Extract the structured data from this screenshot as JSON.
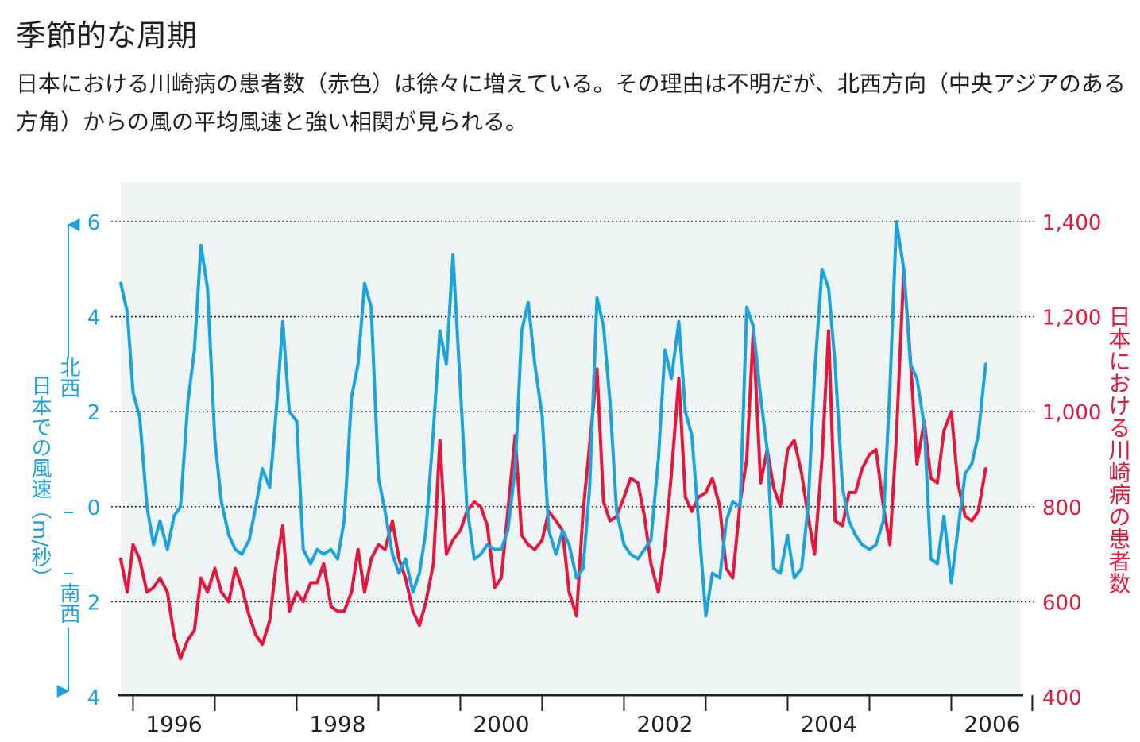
{
  "title": "季節的な周期",
  "subtitle": "日本における川崎病の患者数（赤色）は徐々に増えている。その理由は不明だが、北西方向（中央アジアのある方角）からの風の平均風速と強い相関が見られる。",
  "colors": {
    "wind": "#1ca3dc",
    "cases": "#e4183d",
    "plot_background": "#eef3f4",
    "axis": "#231f20"
  },
  "chart_data": {
    "type": "line",
    "x_range": [
      1995.85,
      2006.85
    ],
    "x_ticks": [
      1996,
      1997,
      1998,
      1999,
      2000,
      2001,
      2002,
      2003,
      2004,
      2005,
      2006,
      2006.99
    ],
    "x_tick_labels": [
      {
        "x": 1996.5,
        "label": "1996"
      },
      {
        "x": 1998.5,
        "label": "1998"
      },
      {
        "x": 2000.5,
        "label": "2000"
      },
      {
        "x": 2002.5,
        "label": "2002"
      },
      {
        "x": 2004.5,
        "label": "2004"
      },
      {
        "x": 2006.5,
        "label": "2006"
      }
    ],
    "left_axis": {
      "label_north": "北西",
      "label_main": "日本での風速（m/秒）",
      "label_south": "南西",
      "range": [
        -4,
        6.7
      ],
      "ticks": [
        6,
        4,
        2,
        0,
        -2,
        -4
      ],
      "tick_labels": [
        "6",
        "4",
        "2",
        "0",
        "2",
        "4"
      ]
    },
    "right_axis": {
      "label": "日本における川崎病の患者数",
      "range": [
        400,
        1470
      ],
      "ticks": [
        1400,
        1200,
        1000,
        800,
        600,
        400
      ],
      "tick_labels": [
        "1,400",
        "1,200",
        "1,000",
        "800",
        "600",
        "400"
      ]
    },
    "gridlines": [
      6,
      4,
      2,
      0,
      -2
    ],
    "series": [
      {
        "axis": "left",
        "points": [
          [
            1995.85,
            4.7
          ],
          [
            1995.93,
            4.1
          ],
          [
            1996.0,
            2.4
          ],
          [
            1996.08,
            1.9
          ],
          [
            1996.17,
            0.0
          ],
          [
            1996.25,
            -0.8
          ],
          [
            1996.33,
            -0.3
          ],
          [
            1996.42,
            -0.9
          ],
          [
            1996.5,
            -0.2
          ],
          [
            1996.58,
            0.0
          ],
          [
            1996.67,
            2.2
          ],
          [
            1996.75,
            3.3
          ],
          [
            1996.83,
            5.5
          ],
          [
            1996.91,
            4.6
          ],
          [
            1997.0,
            1.4
          ],
          [
            1997.08,
            0.1
          ],
          [
            1997.17,
            -0.6
          ],
          [
            1997.25,
            -0.9
          ],
          [
            1997.33,
            -1.0
          ],
          [
            1997.42,
            -0.7
          ],
          [
            1997.5,
            0.0
          ],
          [
            1997.58,
            0.8
          ],
          [
            1997.67,
            0.4
          ],
          [
            1997.75,
            2.0
          ],
          [
            1997.83,
            3.9
          ],
          [
            1997.91,
            2.0
          ],
          [
            1998.0,
            1.8
          ],
          [
            1998.08,
            -0.9
          ],
          [
            1998.17,
            -1.2
          ],
          [
            1998.25,
            -0.9
          ],
          [
            1998.33,
            -1.0
          ],
          [
            1998.42,
            -0.9
          ],
          [
            1998.5,
            -1.1
          ],
          [
            1998.58,
            -0.3
          ],
          [
            1998.67,
            2.3
          ],
          [
            1998.75,
            3.0
          ],
          [
            1998.83,
            4.7
          ],
          [
            1998.91,
            4.2
          ],
          [
            1999.0,
            0.6
          ],
          [
            1999.08,
            -0.1
          ],
          [
            1999.17,
            -1.0
          ],
          [
            1999.25,
            -1.4
          ],
          [
            1999.33,
            -1.1
          ],
          [
            1999.42,
            -1.8
          ],
          [
            1999.5,
            -1.4
          ],
          [
            1999.58,
            -0.5
          ],
          [
            1999.67,
            1.6
          ],
          [
            1999.75,
            3.7
          ],
          [
            1999.83,
            3.0
          ],
          [
            1999.91,
            5.3
          ],
          [
            2000.0,
            2.5
          ],
          [
            2000.08,
            0.0
          ],
          [
            2000.17,
            -1.1
          ],
          [
            2000.25,
            -1.0
          ],
          [
            2000.33,
            -0.8
          ],
          [
            2000.42,
            -0.9
          ],
          [
            2000.5,
            -0.9
          ],
          [
            2000.58,
            -0.5
          ],
          [
            2000.67,
            0.8
          ],
          [
            2000.75,
            3.7
          ],
          [
            2000.83,
            4.3
          ],
          [
            2000.91,
            3.0
          ],
          [
            2001.0,
            1.9
          ],
          [
            2001.08,
            -0.5
          ],
          [
            2001.17,
            -1.0
          ],
          [
            2001.25,
            -0.5
          ],
          [
            2001.33,
            -0.8
          ],
          [
            2001.42,
            -1.5
          ],
          [
            2001.5,
            -1.3
          ],
          [
            2001.58,
            0.4
          ],
          [
            2001.67,
            4.4
          ],
          [
            2001.75,
            3.8
          ],
          [
            2001.83,
            2.2
          ],
          [
            2001.91,
            -0.1
          ],
          [
            2002.0,
            -0.8
          ],
          [
            2002.08,
            -1.0
          ],
          [
            2002.17,
            -1.1
          ],
          [
            2002.25,
            -0.9
          ],
          [
            2002.33,
            -0.7
          ],
          [
            2002.42,
            1.0
          ],
          [
            2002.5,
            3.3
          ],
          [
            2002.58,
            2.7
          ],
          [
            2002.67,
            3.9
          ],
          [
            2002.75,
            2.0
          ],
          [
            2002.83,
            1.5
          ],
          [
            2002.91,
            -0.3
          ],
          [
            2003.0,
            -2.3
          ],
          [
            2003.08,
            -1.4
          ],
          [
            2003.17,
            -1.5
          ],
          [
            2003.25,
            -0.3
          ],
          [
            2003.33,
            0.1
          ],
          [
            2003.42,
            0.0
          ],
          [
            2003.5,
            4.2
          ],
          [
            2003.58,
            3.8
          ],
          [
            2003.67,
            2.3
          ],
          [
            2003.75,
            1.2
          ],
          [
            2003.83,
            -1.3
          ],
          [
            2003.91,
            -1.4
          ],
          [
            2004.0,
            -0.6
          ],
          [
            2004.08,
            -1.5
          ],
          [
            2004.17,
            -1.3
          ],
          [
            2004.25,
            0.0
          ],
          [
            2004.33,
            2.8
          ],
          [
            2004.42,
            5.0
          ],
          [
            2004.5,
            4.6
          ],
          [
            2004.58,
            3.0
          ],
          [
            2004.67,
            0.4
          ],
          [
            2004.75,
            -0.3
          ],
          [
            2004.83,
            -0.6
          ],
          [
            2004.91,
            -0.8
          ],
          [
            2005.0,
            -0.9
          ],
          [
            2005.08,
            -0.8
          ],
          [
            2005.17,
            -0.3
          ],
          [
            2005.25,
            2.5
          ],
          [
            2005.33,
            6.0
          ],
          [
            2005.42,
            5.0
          ],
          [
            2005.5,
            3.0
          ],
          [
            2005.58,
            2.7
          ],
          [
            2005.67,
            1.7
          ],
          [
            2005.75,
            -1.1
          ],
          [
            2005.83,
            -1.2
          ],
          [
            2005.91,
            -0.2
          ],
          [
            2006.0,
            -1.6
          ],
          [
            2006.08,
            -0.5
          ],
          [
            2006.17,
            0.7
          ],
          [
            2006.25,
            0.9
          ],
          [
            2006.33,
            1.5
          ],
          [
            2006.42,
            3.0
          ]
        ]
      },
      {
        "axis": "right",
        "points": [
          [
            1995.85,
            690
          ],
          [
            1995.93,
            620
          ],
          [
            1996.0,
            720
          ],
          [
            1996.08,
            690
          ],
          [
            1996.17,
            620
          ],
          [
            1996.25,
            630
          ],
          [
            1996.33,
            650
          ],
          [
            1996.42,
            620
          ],
          [
            1996.5,
            530
          ],
          [
            1996.58,
            480
          ],
          [
            1996.67,
            520
          ],
          [
            1996.75,
            540
          ],
          [
            1996.83,
            650
          ],
          [
            1996.91,
            620
          ],
          [
            1997.0,
            670
          ],
          [
            1997.08,
            620
          ],
          [
            1997.17,
            600
          ],
          [
            1997.25,
            670
          ],
          [
            1997.33,
            630
          ],
          [
            1997.42,
            570
          ],
          [
            1997.5,
            530
          ],
          [
            1997.58,
            510
          ],
          [
            1997.67,
            560
          ],
          [
            1997.75,
            680
          ],
          [
            1997.83,
            760
          ],
          [
            1997.91,
            580
          ],
          [
            1998.0,
            620
          ],
          [
            1998.08,
            600
          ],
          [
            1998.17,
            640
          ],
          [
            1998.25,
            640
          ],
          [
            1998.33,
            680
          ],
          [
            1998.42,
            590
          ],
          [
            1998.5,
            580
          ],
          [
            1998.58,
            580
          ],
          [
            1998.67,
            620
          ],
          [
            1998.75,
            710
          ],
          [
            1998.83,
            620
          ],
          [
            1998.91,
            690
          ],
          [
            1999.0,
            720
          ],
          [
            1999.08,
            710
          ],
          [
            1999.17,
            770
          ],
          [
            1999.25,
            690
          ],
          [
            1999.33,
            650
          ],
          [
            1999.42,
            580
          ],
          [
            1999.5,
            550
          ],
          [
            1999.58,
            600
          ],
          [
            1999.67,
            680
          ],
          [
            1999.75,
            940
          ],
          [
            1999.83,
            700
          ],
          [
            1999.91,
            730
          ],
          [
            2000.0,
            750
          ],
          [
            2000.08,
            790
          ],
          [
            2000.17,
            810
          ],
          [
            2000.25,
            800
          ],
          [
            2000.33,
            760
          ],
          [
            2000.42,
            630
          ],
          [
            2000.5,
            650
          ],
          [
            2000.58,
            790
          ],
          [
            2000.67,
            950
          ],
          [
            2000.75,
            740
          ],
          [
            2000.83,
            720
          ],
          [
            2000.91,
            710
          ],
          [
            2001.0,
            730
          ],
          [
            2001.08,
            790
          ],
          [
            2001.17,
            770
          ],
          [
            2001.25,
            750
          ],
          [
            2001.33,
            620
          ],
          [
            2001.42,
            570
          ],
          [
            2001.5,
            790
          ],
          [
            2001.58,
            930
          ],
          [
            2001.67,
            1090
          ],
          [
            2001.75,
            810
          ],
          [
            2001.83,
            770
          ],
          [
            2001.91,
            780
          ],
          [
            2002.0,
            820
          ],
          [
            2002.08,
            860
          ],
          [
            2002.17,
            850
          ],
          [
            2002.25,
            780
          ],
          [
            2002.33,
            680
          ],
          [
            2002.42,
            620
          ],
          [
            2002.5,
            720
          ],
          [
            2002.58,
            870
          ],
          [
            2002.67,
            1070
          ],
          [
            2002.75,
            820
          ],
          [
            2002.83,
            790
          ],
          [
            2002.91,
            820
          ],
          [
            2003.0,
            830
          ],
          [
            2003.08,
            860
          ],
          [
            2003.17,
            800
          ],
          [
            2003.25,
            670
          ],
          [
            2003.33,
            650
          ],
          [
            2003.42,
            810
          ],
          [
            2003.5,
            900
          ],
          [
            2003.58,
            1170
          ],
          [
            2003.67,
            850
          ],
          [
            2003.75,
            920
          ],
          [
            2003.83,
            840
          ],
          [
            2003.91,
            800
          ],
          [
            2004.0,
            920
          ],
          [
            2004.08,
            940
          ],
          [
            2004.17,
            870
          ],
          [
            2004.25,
            780
          ],
          [
            2004.33,
            700
          ],
          [
            2004.42,
            900
          ],
          [
            2004.5,
            1170
          ],
          [
            2004.58,
            770
          ],
          [
            2004.67,
            760
          ],
          [
            2004.75,
            830
          ],
          [
            2004.83,
            830
          ],
          [
            2004.91,
            880
          ],
          [
            2005.0,
            910
          ],
          [
            2005.08,
            920
          ],
          [
            2005.17,
            800
          ],
          [
            2005.25,
            720
          ],
          [
            2005.33,
            950
          ],
          [
            2005.42,
            1300
          ],
          [
            2005.5,
            1110
          ],
          [
            2005.58,
            890
          ],
          [
            2005.67,
            980
          ],
          [
            2005.75,
            860
          ],
          [
            2005.83,
            850
          ],
          [
            2005.91,
            960
          ],
          [
            2006.0,
            1000
          ],
          [
            2006.08,
            850
          ],
          [
            2006.17,
            780
          ],
          [
            2006.25,
            770
          ],
          [
            2006.33,
            790
          ],
          [
            2006.42,
            880
          ]
        ]
      }
    ]
  }
}
